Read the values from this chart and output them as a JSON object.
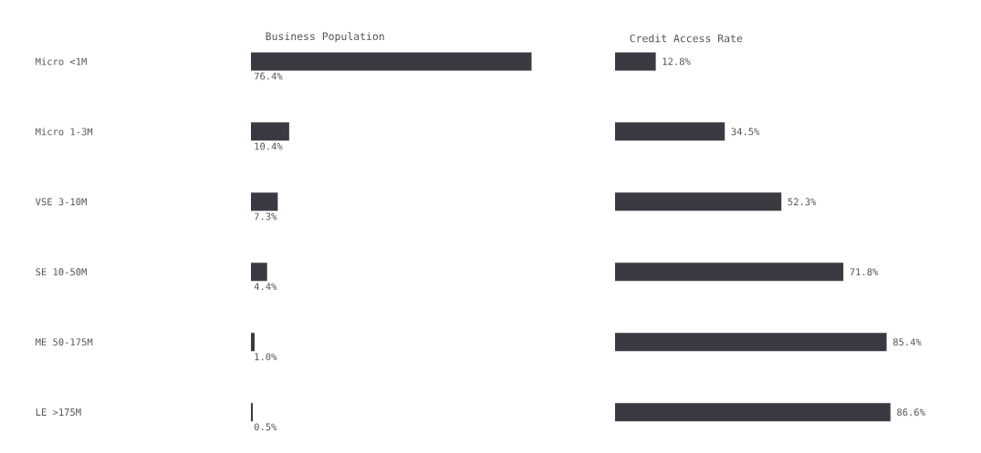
{
  "chart_data": [
    {
      "type": "bar",
      "orientation": "horizontal",
      "title": "Business Population",
      "categories": [
        "Micro <1M",
        "Micro 1-3M",
        "VSE 3-10M",
        "SE 10-50M",
        "ME 50-175M",
        "LE >175M"
      ],
      "values": [
        76.4,
        10.4,
        7.3,
        4.4,
        1.0,
        0.5
      ],
      "value_labels": [
        "76.4%",
        "10.4%",
        "7.3%",
        "4.4%",
        "1.0%",
        "0.5%"
      ],
      "color": "#3a3a42",
      "tick_labels": "y"
    },
    {
      "type": "bar",
      "orientation": "horizontal",
      "title": "Credit Access Rate",
      "categories": [
        null,
        null,
        null,
        null,
        null,
        null
      ],
      "values": [
        12.8,
        34.5,
        52.3,
        71.8,
        85.4,
        86.6
      ],
      "value_labels": [
        "12.8%",
        "34.5%",
        "52.3%",
        "71.8%",
        "85.4%",
        "86.6%"
      ],
      "color": "#3a3a42",
      "tick_labels": false
    }
  ]
}
